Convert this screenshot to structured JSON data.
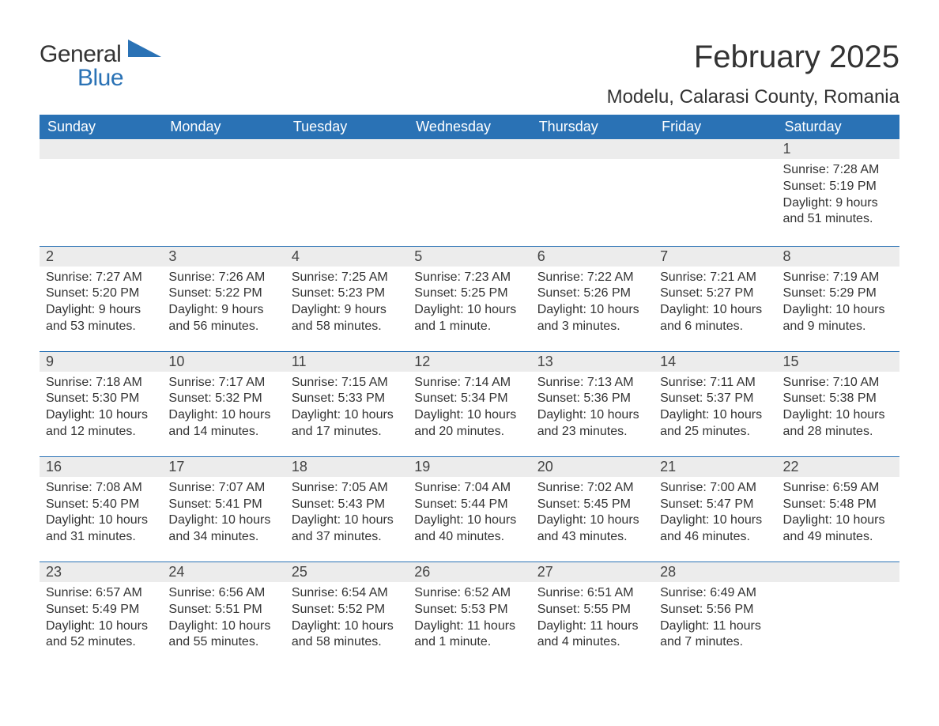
{
  "brand": {
    "word1": "General",
    "word2": "Blue",
    "tri_color": "#2a72b5"
  },
  "title": "February 2025",
  "location": "Modelu, Calarasi County, Romania",
  "colors": {
    "header_bg": "#2a72b5",
    "header_fg": "#ffffff",
    "daynum_bg": "#ececec",
    "rule": "#2a72b5",
    "text": "#333333",
    "page_bg": "#ffffff"
  },
  "weekdays": [
    "Sunday",
    "Monday",
    "Tuesday",
    "Wednesday",
    "Thursday",
    "Friday",
    "Saturday"
  ],
  "weeks": [
    [
      null,
      null,
      null,
      null,
      null,
      null,
      {
        "n": "1",
        "sr": "Sunrise: 7:28 AM",
        "ss": "Sunset: 5:19 PM",
        "dl": "Daylight: 9 hours and 51 minutes."
      }
    ],
    [
      {
        "n": "2",
        "sr": "Sunrise: 7:27 AM",
        "ss": "Sunset: 5:20 PM",
        "dl": "Daylight: 9 hours and 53 minutes."
      },
      {
        "n": "3",
        "sr": "Sunrise: 7:26 AM",
        "ss": "Sunset: 5:22 PM",
        "dl": "Daylight: 9 hours and 56 minutes."
      },
      {
        "n": "4",
        "sr": "Sunrise: 7:25 AM",
        "ss": "Sunset: 5:23 PM",
        "dl": "Daylight: 9 hours and 58 minutes."
      },
      {
        "n": "5",
        "sr": "Sunrise: 7:23 AM",
        "ss": "Sunset: 5:25 PM",
        "dl": "Daylight: 10 hours and 1 minute."
      },
      {
        "n": "6",
        "sr": "Sunrise: 7:22 AM",
        "ss": "Sunset: 5:26 PM",
        "dl": "Daylight: 10 hours and 3 minutes."
      },
      {
        "n": "7",
        "sr": "Sunrise: 7:21 AM",
        "ss": "Sunset: 5:27 PM",
        "dl": "Daylight: 10 hours and 6 minutes."
      },
      {
        "n": "8",
        "sr": "Sunrise: 7:19 AM",
        "ss": "Sunset: 5:29 PM",
        "dl": "Daylight: 10 hours and 9 minutes."
      }
    ],
    [
      {
        "n": "9",
        "sr": "Sunrise: 7:18 AM",
        "ss": "Sunset: 5:30 PM",
        "dl": "Daylight: 10 hours and 12 minutes."
      },
      {
        "n": "10",
        "sr": "Sunrise: 7:17 AM",
        "ss": "Sunset: 5:32 PM",
        "dl": "Daylight: 10 hours and 14 minutes."
      },
      {
        "n": "11",
        "sr": "Sunrise: 7:15 AM",
        "ss": "Sunset: 5:33 PM",
        "dl": "Daylight: 10 hours and 17 minutes."
      },
      {
        "n": "12",
        "sr": "Sunrise: 7:14 AM",
        "ss": "Sunset: 5:34 PM",
        "dl": "Daylight: 10 hours and 20 minutes."
      },
      {
        "n": "13",
        "sr": "Sunrise: 7:13 AM",
        "ss": "Sunset: 5:36 PM",
        "dl": "Daylight: 10 hours and 23 minutes."
      },
      {
        "n": "14",
        "sr": "Sunrise: 7:11 AM",
        "ss": "Sunset: 5:37 PM",
        "dl": "Daylight: 10 hours and 25 minutes."
      },
      {
        "n": "15",
        "sr": "Sunrise: 7:10 AM",
        "ss": "Sunset: 5:38 PM",
        "dl": "Daylight: 10 hours and 28 minutes."
      }
    ],
    [
      {
        "n": "16",
        "sr": "Sunrise: 7:08 AM",
        "ss": "Sunset: 5:40 PM",
        "dl": "Daylight: 10 hours and 31 minutes."
      },
      {
        "n": "17",
        "sr": "Sunrise: 7:07 AM",
        "ss": "Sunset: 5:41 PM",
        "dl": "Daylight: 10 hours and 34 minutes."
      },
      {
        "n": "18",
        "sr": "Sunrise: 7:05 AM",
        "ss": "Sunset: 5:43 PM",
        "dl": "Daylight: 10 hours and 37 minutes."
      },
      {
        "n": "19",
        "sr": "Sunrise: 7:04 AM",
        "ss": "Sunset: 5:44 PM",
        "dl": "Daylight: 10 hours and 40 minutes."
      },
      {
        "n": "20",
        "sr": "Sunrise: 7:02 AM",
        "ss": "Sunset: 5:45 PM",
        "dl": "Daylight: 10 hours and 43 minutes."
      },
      {
        "n": "21",
        "sr": "Sunrise: 7:00 AM",
        "ss": "Sunset: 5:47 PM",
        "dl": "Daylight: 10 hours and 46 minutes."
      },
      {
        "n": "22",
        "sr": "Sunrise: 6:59 AM",
        "ss": "Sunset: 5:48 PM",
        "dl": "Daylight: 10 hours and 49 minutes."
      }
    ],
    [
      {
        "n": "23",
        "sr": "Sunrise: 6:57 AM",
        "ss": "Sunset: 5:49 PM",
        "dl": "Daylight: 10 hours and 52 minutes."
      },
      {
        "n": "24",
        "sr": "Sunrise: 6:56 AM",
        "ss": "Sunset: 5:51 PM",
        "dl": "Daylight: 10 hours and 55 minutes."
      },
      {
        "n": "25",
        "sr": "Sunrise: 6:54 AM",
        "ss": "Sunset: 5:52 PM",
        "dl": "Daylight: 10 hours and 58 minutes."
      },
      {
        "n": "26",
        "sr": "Sunrise: 6:52 AM",
        "ss": "Sunset: 5:53 PM",
        "dl": "Daylight: 11 hours and 1 minute."
      },
      {
        "n": "27",
        "sr": "Sunrise: 6:51 AM",
        "ss": "Sunset: 5:55 PM",
        "dl": "Daylight: 11 hours and 4 minutes."
      },
      {
        "n": "28",
        "sr": "Sunrise: 6:49 AM",
        "ss": "Sunset: 5:56 PM",
        "dl": "Daylight: 11 hours and 7 minutes."
      },
      null
    ]
  ]
}
